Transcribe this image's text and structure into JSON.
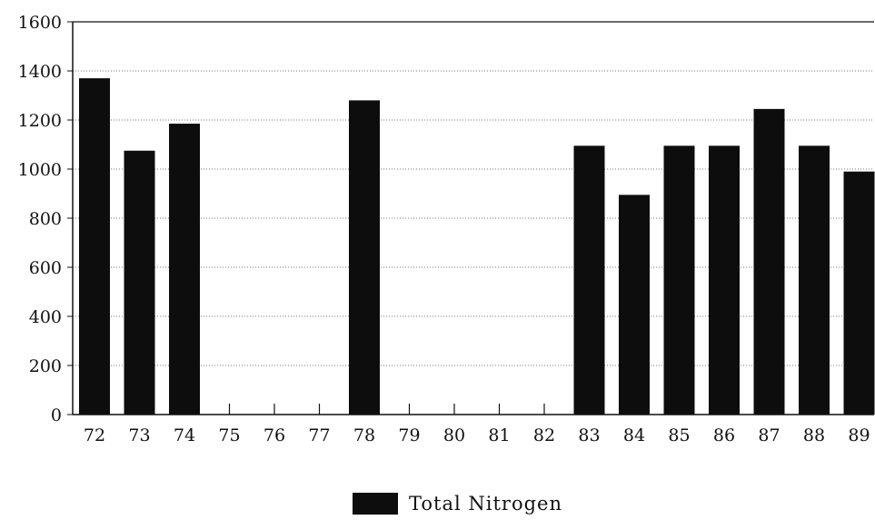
{
  "chart_data": {
    "type": "bar",
    "categories": [
      "72",
      "73",
      "74",
      "75",
      "76",
      "77",
      "78",
      "79",
      "80",
      "81",
      "82",
      "83",
      "84",
      "85",
      "86",
      "87",
      "88",
      "89"
    ],
    "series": [
      {
        "name": "Total Nitrogen",
        "values": [
          1370,
          1075,
          1185,
          null,
          null,
          null,
          1280,
          null,
          null,
          null,
          null,
          1095,
          895,
          1095,
          1095,
          1245,
          1095,
          990
        ],
        "color": "#0d0d0d"
      }
    ],
    "yticks": [
      "0",
      "200",
      "400",
      "600",
      "800",
      "1000",
      "1200",
      "1400",
      "1600"
    ],
    "ylim": [
      0,
      1600
    ],
    "grid": "horizontal dotted",
    "legend_position": "bottom-center",
    "title": "",
    "xlabel": "",
    "ylabel": ""
  }
}
